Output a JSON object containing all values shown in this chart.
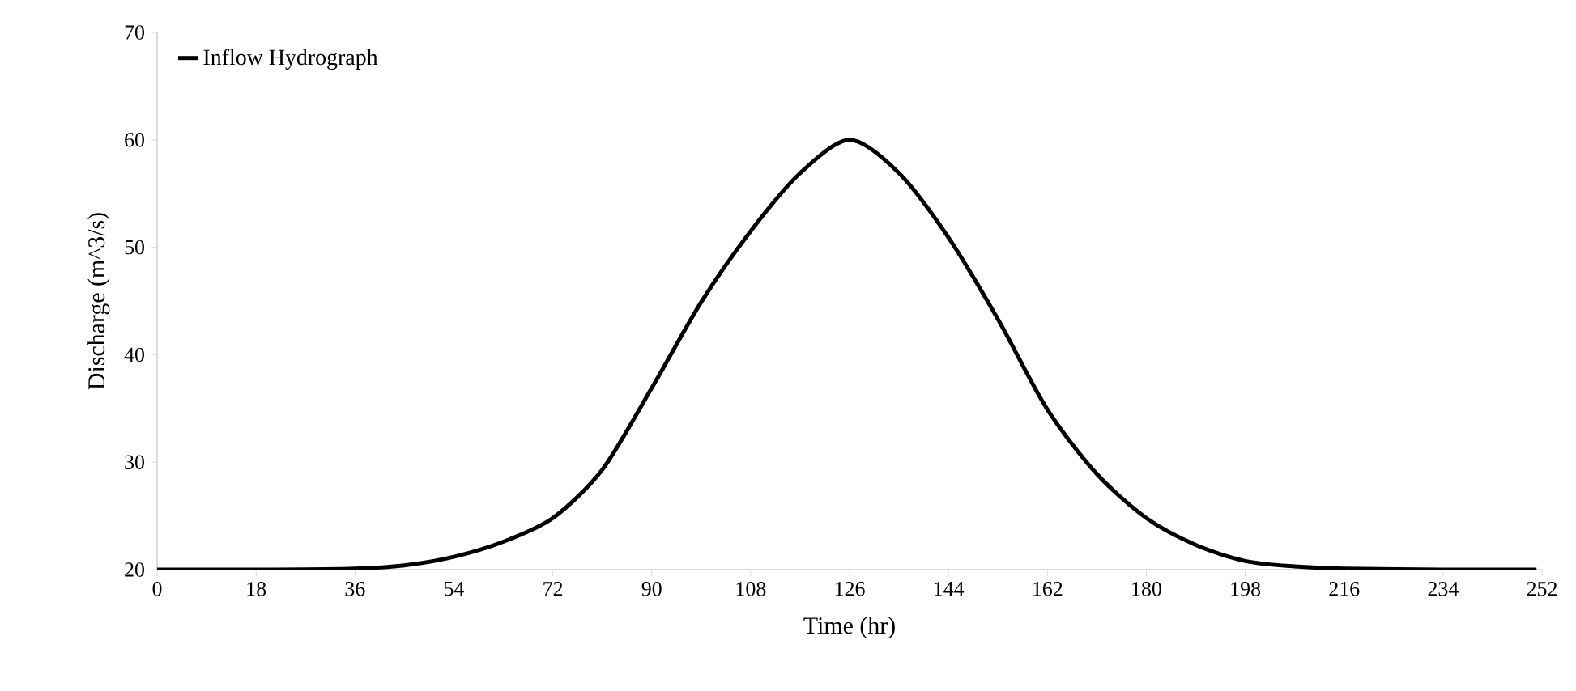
{
  "chart_data": {
    "type": "line",
    "xlabel": "Time (hr)",
    "ylabel": "Discharge (m^3/s)",
    "x": [
      0,
      18,
      36,
      45,
      54,
      63,
      72,
      81,
      90,
      99,
      108,
      117,
      126,
      135,
      144,
      153,
      162,
      171,
      180,
      189,
      198,
      207,
      216,
      234,
      251
    ],
    "series": [
      {
        "name": "Inflow Hydrograph",
        "color": "#000000",
        "values": [
          20,
          20,
          20.1,
          20.4,
          21.2,
          22.6,
          24.8,
          29.3,
          36.9,
          44.9,
          51.5,
          56.9,
          60,
          56.9,
          50.9,
          43.3,
          34.9,
          28.9,
          24.8,
          22.3,
          20.8,
          20.3,
          20.1,
          20,
          20
        ]
      }
    ],
    "xlim": [
      0,
      252
    ],
    "ylim": [
      20,
      70
    ],
    "xticks": [
      0,
      18,
      36,
      54,
      72,
      90,
      108,
      126,
      144,
      162,
      180,
      198,
      216,
      234,
      252
    ],
    "yticks": [
      20,
      30,
      40,
      50,
      60,
      70
    ],
    "legend": "top left",
    "grid": false,
    "marker": "none",
    "line_style": "solid"
  }
}
